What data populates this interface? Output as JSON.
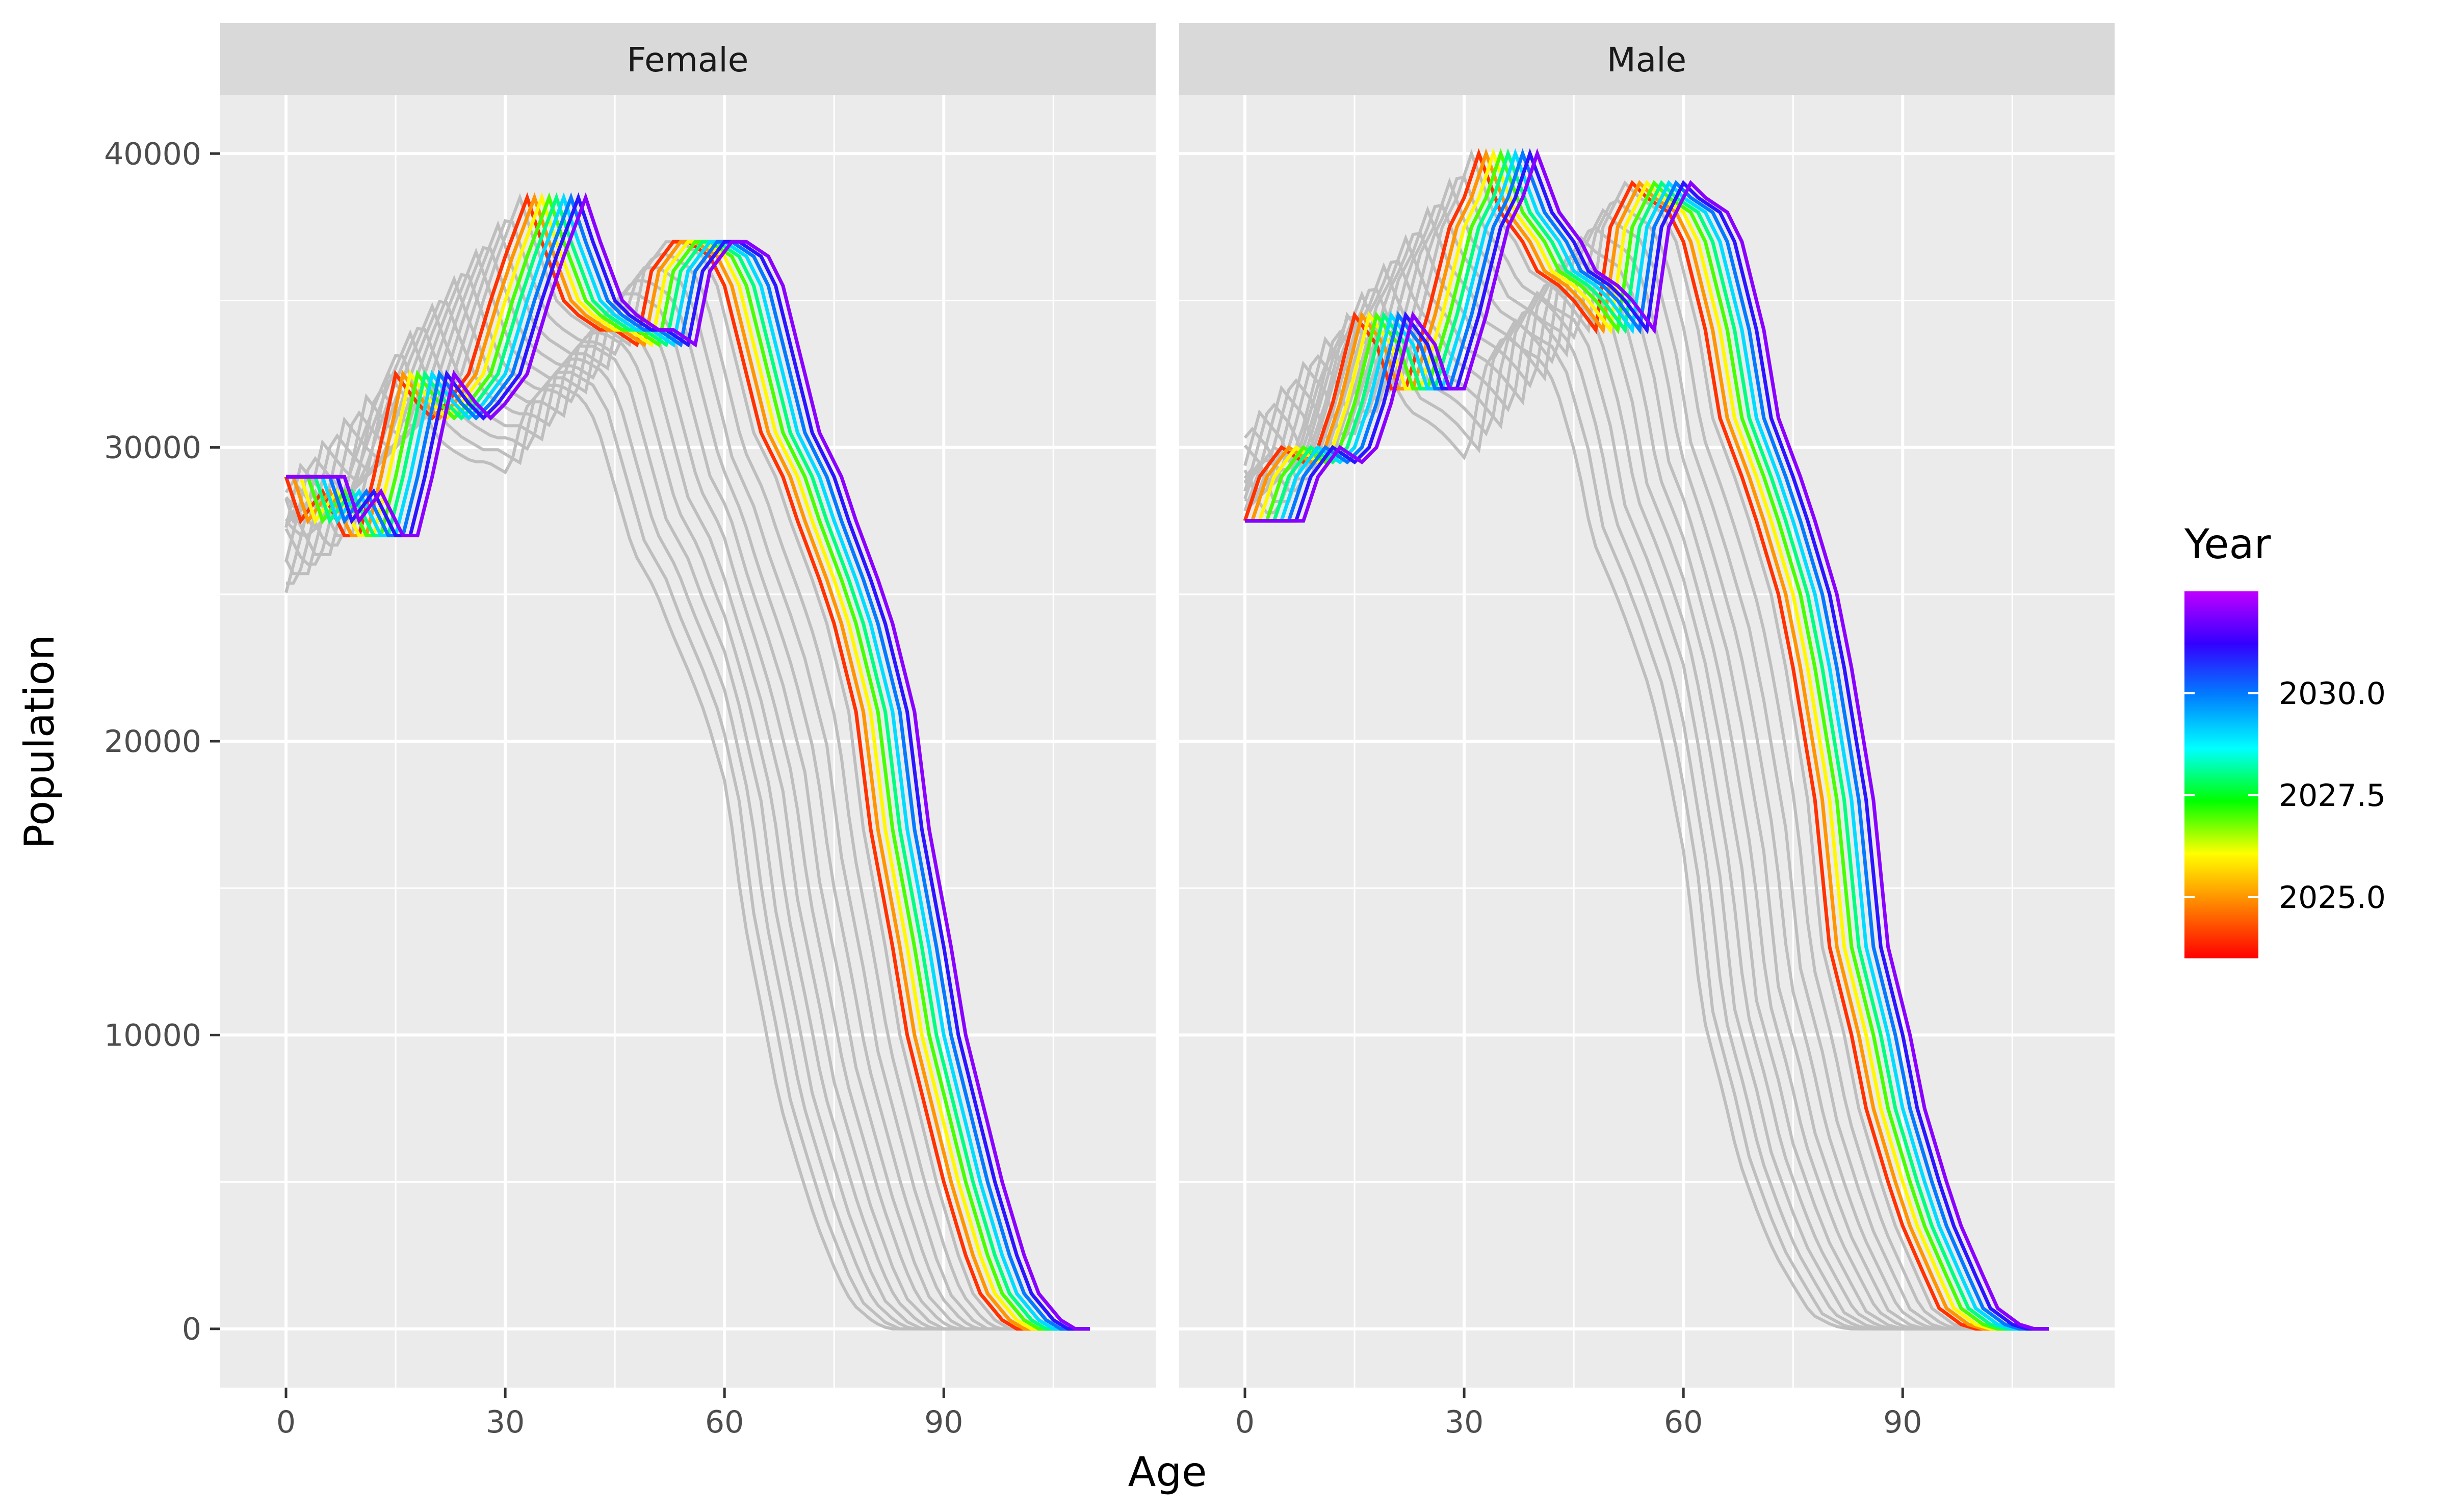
{
  "chart_data": {
    "type": "line",
    "xlabel": "Age",
    "ylabel": "Population",
    "xlim": [
      -9,
      119
    ],
    "ylim": [
      -2000,
      42000
    ],
    "x_ticks": [
      0,
      30,
      60,
      90
    ],
    "y_ticks": [
      0,
      10000,
      20000,
      30000,
      40000
    ],
    "grid": true,
    "legend": {
      "title": "Year",
      "position": "right",
      "type": "colorbar",
      "range": [
        2023.5,
        2032.5
      ],
      "ticks": [
        2025.0,
        2027.5,
        2030.0
      ],
      "colors": [
        "#ff0000",
        "#ff8000",
        "#ffff00",
        "#00ff00",
        "#00ffff",
        "#0080ff",
        "#3300ff",
        "#bf00ff"
      ]
    },
    "background_series": {
      "color": "#bebebe",
      "description_note": "historical years, drawn in grey",
      "count": 12
    },
    "facets": [
      {
        "label": "Female",
        "base_profile": {
          "ages": [
            0,
            2,
            5,
            8,
            10,
            12,
            15,
            18,
            20,
            22,
            25,
            28,
            30,
            33,
            35,
            38,
            40,
            43,
            45,
            48,
            50,
            53,
            55,
            58,
            60,
            63,
            65,
            68,
            70,
            73,
            75,
            78,
            80,
            83,
            85,
            88,
            90,
            93,
            95,
            98,
            100,
            105,
            110
          ],
          "values": [
            29000,
            27500,
            28500,
            27000,
            27000,
            29000,
            32500,
            31500,
            31000,
            31500,
            32500,
            35000,
            36500,
            38500,
            37000,
            35000,
            34500,
            34000,
            34000,
            33500,
            36000,
            37000,
            37000,
            36500,
            35500,
            32500,
            30500,
            29000,
            27500,
            25500,
            24000,
            21000,
            17000,
            13000,
            10000,
            7000,
            5000,
            2500,
            1200,
            300,
            0,
            0,
            0
          ]
        },
        "year_series": [
          {
            "year": 2024,
            "shift": 0
          },
          {
            "year": 2025,
            "shift": 1
          },
          {
            "year": 2026,
            "shift": 2
          },
          {
            "year": 2027,
            "shift": 3
          },
          {
            "year": 2028,
            "shift": 4
          },
          {
            "year": 2029,
            "shift": 5
          },
          {
            "year": 2030,
            "shift": 6
          },
          {
            "year": 2031,
            "shift": 7
          },
          {
            "year": 2032,
            "shift": 8
          }
        ]
      },
      {
        "label": "Male",
        "base_profile": {
          "ages": [
            0,
            2,
            5,
            8,
            10,
            12,
            15,
            18,
            20,
            22,
            25,
            28,
            30,
            32,
            35,
            38,
            40,
            43,
            45,
            48,
            50,
            53,
            55,
            58,
            60,
            63,
            65,
            68,
            70,
            73,
            75,
            78,
            80,
            83,
            85,
            88,
            90,
            93,
            95,
            98,
            100,
            105,
            110
          ],
          "values": [
            27500,
            29000,
            30000,
            29500,
            30000,
            31500,
            34500,
            33500,
            32000,
            32000,
            34500,
            37500,
            38500,
            40000,
            38000,
            37000,
            36000,
            35500,
            35000,
            34000,
            37500,
            39000,
            38500,
            38000,
            37000,
            34000,
            31000,
            29000,
            27500,
            25000,
            22500,
            18000,
            13000,
            10000,
            7500,
            5000,
            3500,
            1800,
            700,
            150,
            0,
            0,
            0
          ]
        },
        "year_series": [
          {
            "year": 2024,
            "shift": 0
          },
          {
            "year": 2025,
            "shift": 1
          },
          {
            "year": 2026,
            "shift": 2
          },
          {
            "year": 2027,
            "shift": 3
          },
          {
            "year": 2028,
            "shift": 4
          },
          {
            "year": 2029,
            "shift": 5
          },
          {
            "year": 2030,
            "shift": 6
          },
          {
            "year": 2031,
            "shift": 7
          },
          {
            "year": 2032,
            "shift": 8
          }
        ]
      }
    ]
  },
  "strips": {
    "female": "Female",
    "male": "Male"
  },
  "axes": {
    "xlabel": "Age",
    "ylabel": "Population"
  },
  "legend": {
    "title": "Year",
    "labels": [
      "2030.0",
      "2027.5",
      "2025.0"
    ]
  }
}
